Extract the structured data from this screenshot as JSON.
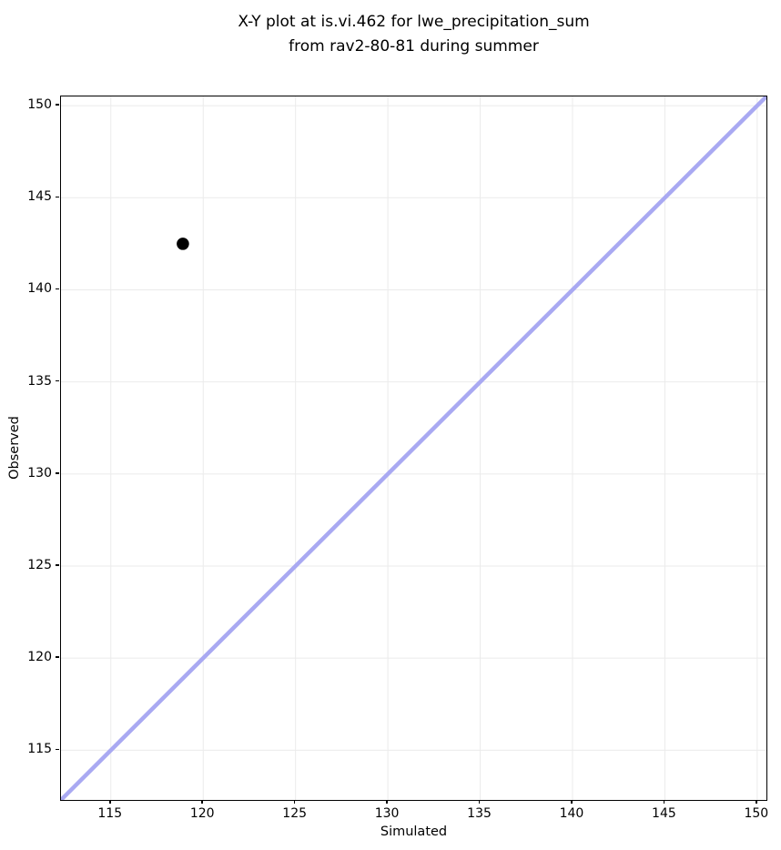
{
  "figure": {
    "background": "#ffffff"
  },
  "chart_data": {
    "type": "scatter",
    "title": "X-Y plot at is.vi.462 for lwe_precipitation_sum from rav2-80-81 during summer",
    "title_lines": [
      "X-Y plot at is.vi.462 for lwe_precipitation_sum",
      "from rav2-80-81 during summer"
    ],
    "xlabel": "Simulated",
    "ylabel": "Observed",
    "xlim": [
      112.3,
      150.5
    ],
    "ylim": [
      112.3,
      150.5
    ],
    "xticks": [
      115,
      120,
      125,
      130,
      135,
      140,
      145,
      150
    ],
    "yticks": [
      115,
      120,
      125,
      130,
      135,
      140,
      145,
      150
    ],
    "grid": true,
    "legend_visible": false,
    "series": [
      {
        "name": "observed-vs-simulated",
        "marker": "circle",
        "color": "#000000",
        "marker_radius": 6.8,
        "points": [
          {
            "x": 118.9,
            "y": 142.5
          }
        ]
      }
    ],
    "identity_line": {
      "from": 112.3,
      "to": 150.5,
      "color": "#a9a9f2",
      "width": 4.5
    },
    "colors": {
      "grid": "#ebebeb",
      "spine": "#000000",
      "text": "#000000",
      "point": "#000000",
      "identity_line": "#a9a9f2"
    }
  }
}
